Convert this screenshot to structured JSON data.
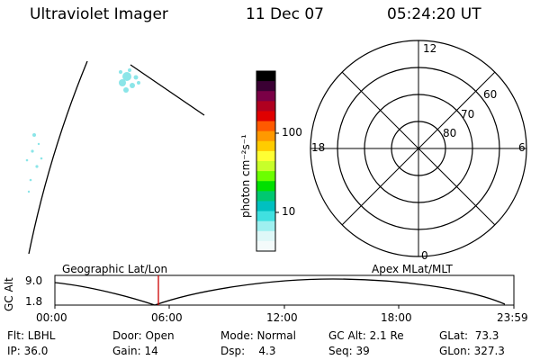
{
  "header": {
    "instrument": "Ultraviolet Imager",
    "date": "11 Dec 07",
    "time": "05:24:20 UT"
  },
  "colorbar": {
    "unit_label": "photon cm⁻²s⁻¹",
    "ticks": [
      "100",
      "10"
    ],
    "colors": [
      "#000000",
      "#3a0033",
      "#7a0046",
      "#b00020",
      "#e00000",
      "#ff5a00",
      "#ff9900",
      "#ffcc00",
      "#ffff33",
      "#c8ff2a",
      "#6cff00",
      "#00e000",
      "#00c870",
      "#00c0c0",
      "#40e0e0",
      "#9ff0f0",
      "#dff8f8",
      "#f4fbfb"
    ]
  },
  "polar_plot": {
    "clock_labels": {
      "top": "12",
      "left": "18",
      "right": "6",
      "bottom": "0"
    },
    "lat_labels": [
      "60",
      "70",
      "80"
    ]
  },
  "timeline": {
    "ylabel": "GC Alt",
    "ytick_top": "9.0",
    "ytick_bottom": "1.8",
    "left_title": "Geographic Lat/Lon",
    "right_title": "Apex MLat/MLT",
    "xticks": [
      "00:00",
      "06:00",
      "12:00",
      "18:00",
      "23:59"
    ],
    "current_time_marker": "05:24"
  },
  "status": {
    "filter": "Flt: LBHL",
    "ip": "IP: 36.0",
    "door": "Door: Open",
    "gain": "Gain: 14",
    "mode": "Mode: Normal",
    "dsp": "Dsp:    4.3",
    "gc_alt": "GC Alt: 2.1 Re",
    "seq": "Seq: 39",
    "glat": "GLat:  73.3",
    "glon": "GLon: 327.3"
  },
  "colors": {
    "marker": "#cc0000",
    "auroral_specks": "#7fe3e6"
  }
}
